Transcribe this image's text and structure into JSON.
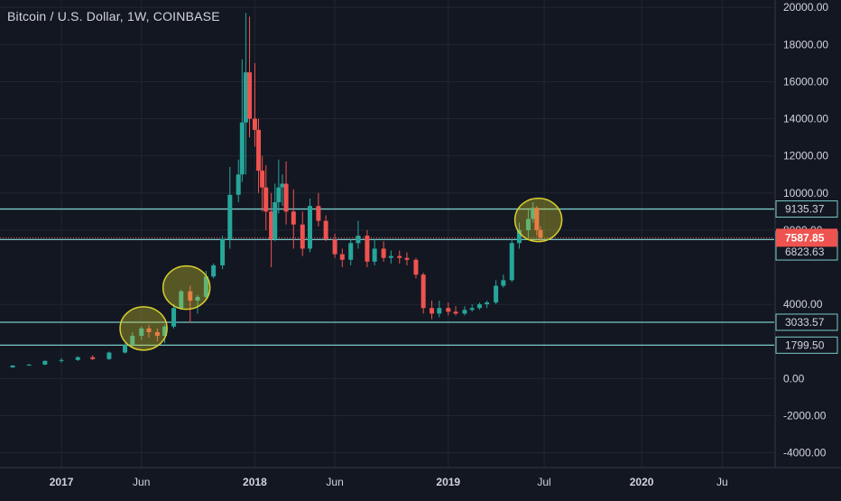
{
  "chart_data": {
    "type": "candlestick",
    "title": "Bitcoin / U.S. Dollar, 1W, COINBASE",
    "xlabel": "",
    "ylabel": "",
    "ylim": [
      -4800,
      20400
    ],
    "grid": true,
    "legend": "none",
    "y_ticks": [
      "20000.00",
      "18000.00",
      "16000.00",
      "14000.00",
      "12000.00",
      "10000.00",
      "8000.00",
      "4000.00",
      "0.00",
      "-2000.00",
      "-4000.00"
    ],
    "y_tick_values": [
      20000,
      18000,
      16000,
      14000,
      12000,
      10000,
      8000,
      4000,
      0,
      -2000,
      -4000
    ],
    "x_ticks": [
      {
        "label": "2017",
        "date": "2017-01-01",
        "bold": true
      },
      {
        "label": "Jun",
        "date": "2017-06-01",
        "bold": false
      },
      {
        "label": "2018",
        "date": "2018-01-01",
        "bold": true
      },
      {
        "label": "Jun",
        "date": "2018-06-01",
        "bold": false
      },
      {
        "label": "2019",
        "date": "2019-01-01",
        "bold": true
      },
      {
        "label": "Jul",
        "date": "2019-07-01",
        "bold": false
      },
      {
        "label": "2020",
        "date": "2020-01-01",
        "bold": true
      },
      {
        "label": "Ju",
        "date": "2020-06-01",
        "bold": false
      }
    ],
    "price_levels": [
      {
        "label": "9135.37",
        "value": 9135.37
      },
      {
        "label": "7489.94",
        "value": 7489.94
      },
      {
        "label": "6823.63",
        "value": 6823.63
      },
      {
        "label": "3033.57",
        "value": 3033.57
      },
      {
        "label": "1799.50",
        "value": 1799.5
      }
    ],
    "level_lines": [
      9135.37,
      7489.94,
      3033.57,
      1799.5
    ],
    "current_price": {
      "label": "7587.85",
      "value": 7587.85
    },
    "highlights": [
      {
        "date": "2017-06-05",
        "value": 2700
      },
      {
        "date": "2017-08-25",
        "value": 4900
      },
      {
        "date": "2019-06-20",
        "value": 8550
      }
    ],
    "colors": {
      "up": "#26a69a",
      "down": "#ef5350",
      "level": "#79c9c8",
      "highlight": "#d7cf2f",
      "background": "#131722",
      "grid": "#22262f",
      "axis_text": "#d1d4dc"
    },
    "series": [
      {
        "x": [
          "2016-10-01",
          "2016-11-01",
          "2016-12-01",
          "2017-01-01",
          "2017-02-01",
          "2017-03-01",
          "2017-04-01",
          "2017-05-01",
          "2017-05-15",
          "2017-06-01",
          "2017-06-15",
          "2017-07-01",
          "2017-07-15",
          "2017-08-01",
          "2017-08-15",
          "2017-09-01",
          "2017-09-15",
          "2017-10-01",
          "2017-10-15",
          "2017-11-01",
          "2017-11-15",
          "2017-12-01",
          "2017-12-08",
          "2017-12-15",
          "2017-12-22",
          "2018-01-01",
          "2018-01-08",
          "2018-01-15",
          "2018-01-22",
          "2018-02-01",
          "2018-02-08",
          "2018-02-15",
          "2018-02-22",
          "2018-03-01",
          "2018-03-15",
          "2018-04-01",
          "2018-04-15",
          "2018-05-01",
          "2018-05-15",
          "2018-06-01",
          "2018-06-15",
          "2018-07-01",
          "2018-07-15",
          "2018-08-01",
          "2018-08-15",
          "2018-09-01",
          "2018-09-15",
          "2018-10-01",
          "2018-10-15",
          "2018-11-01",
          "2018-11-15",
          "2018-12-01",
          "2018-12-15",
          "2019-01-01",
          "2019-01-15",
          "2019-02-01",
          "2019-02-15",
          "2019-03-01",
          "2019-03-15",
          "2019-04-01",
          "2019-04-15",
          "2019-05-01",
          "2019-05-15",
          "2019-06-01",
          "2019-06-10",
          "2019-06-17",
          "2019-06-24"
        ],
        "open": [
          600,
          700,
          750,
          950,
          1000,
          1150,
          1050,
          1400,
          1800,
          2300,
          2700,
          2500,
          2300,
          2800,
          3800,
          4700,
          4200,
          4400,
          5500,
          6100,
          7500,
          9900,
          11000,
          13800,
          16500,
          14000,
          13400,
          11200,
          10300,
          9000,
          7500,
          9500,
          10300,
          10500,
          9000,
          8300,
          7000,
          9300,
          8500,
          7500,
          6700,
          6400,
          7300,
          7700,
          6300,
          7000,
          6500,
          6600,
          6500,
          6400,
          5600,
          3800,
          3500,
          3800,
          3600,
          3500,
          3700,
          3800,
          4000,
          4100,
          5000,
          5300,
          7300,
          8000,
          8600,
          9200,
          8000
        ],
        "close": [
          700,
          750,
          950,
          1000,
          1150,
          1050,
          1400,
          1800,
          2300,
          2700,
          2500,
          2300,
          2800,
          3800,
          4700,
          4200,
          4400,
          5500,
          6100,
          7500,
          9900,
          11000,
          13800,
          16500,
          14000,
          13400,
          11200,
          10300,
          9000,
          7500,
          9500,
          10300,
          10500,
          9000,
          8300,
          7000,
          9300,
          8500,
          7500,
          6700,
          6400,
          7300,
          7700,
          6300,
          7000,
          6500,
          6600,
          6500,
          6400,
          5600,
          3800,
          3500,
          3800,
          3600,
          3500,
          3700,
          3800,
          4000,
          4100,
          5000,
          5300,
          7300,
          8000,
          8600,
          9200,
          8000,
          7590
        ],
        "high": [
          720,
          780,
          980,
          1100,
          1200,
          1250,
          1450,
          1900,
          2500,
          2800,
          2900,
          2700,
          2900,
          4000,
          4800,
          5000,
          4500,
          5800,
          6200,
          7700,
          11400,
          11800,
          17200,
          19700,
          19500,
          17000,
          14000,
          12000,
          11500,
          10000,
          10500,
          11800,
          11000,
          11700,
          10200,
          9000,
          9700,
          10000,
          8800,
          7800,
          7000,
          7500,
          8500,
          8000,
          7500,
          7400,
          6900,
          6900,
          6800,
          6500,
          5700,
          4200,
          4200,
          4100,
          3900,
          3900,
          4000,
          4100,
          4200,
          5300,
          5600,
          7500,
          8400,
          9100,
          9500,
          9300,
          8200
        ],
        "low": [
          580,
          690,
          720,
          850,
          950,
          1000,
          1000,
          1350,
          1700,
          2100,
          2200,
          2000,
          1900,
          2700,
          3700,
          3000,
          3500,
          4300,
          5400,
          5900,
          7000,
          9500,
          10600,
          11000,
          13000,
          12500,
          10000,
          9000,
          8000,
          6000,
          7400,
          8900,
          9300,
          8300,
          7000,
          6600,
          6800,
          8200,
          7400,
          6500,
          6000,
          6100,
          7000,
          6000,
          6100,
          6300,
          6200,
          6200,
          6100,
          5400,
          3500,
          3200,
          3300,
          3400,
          3400,
          3400,
          3600,
          3700,
          3800,
          4000,
          4900,
          5200,
          7000,
          7600,
          8400,
          7700,
          7400
        ]
      }
    ]
  }
}
